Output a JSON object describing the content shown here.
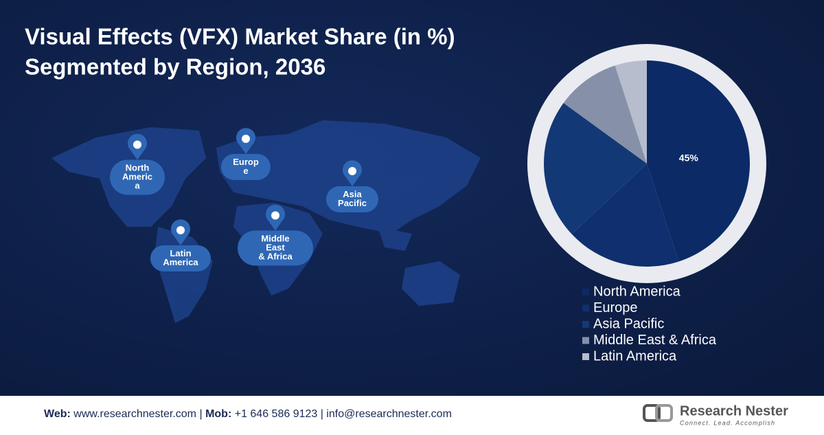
{
  "chart_data": {
    "type": "pie",
    "title": "Visual Effects (VFX) Market Share (in %)",
    "subtitle": "Segmented by Region, 2036",
    "categories": [
      "North America",
      "Europe",
      "Asia Pacific",
      "Middle East & Africa",
      "Latin America"
    ],
    "values": [
      45,
      18,
      22,
      10,
      5
    ],
    "value_labels": [
      "45%",
      null,
      null,
      null,
      null
    ],
    "colors": [
      "#0c2a66",
      "#0f2f6e",
      "#133876",
      "#8790a9",
      "#b7bdcc"
    ],
    "map_labels": [
      {
        "lines": [
          "North",
          "Americ",
          "a"
        ]
      },
      {
        "lines": [
          "Europ",
          "e"
        ]
      },
      {
        "lines": [
          "Asia",
          "Pacific"
        ]
      },
      {
        "lines": [
          "Latin",
          "America"
        ]
      },
      {
        "lines": [
          "Middle",
          "East",
          "& Africa"
        ]
      }
    ]
  },
  "footer": {
    "web_label": "Web:",
    "web": "www.researchnester.com",
    "sep1": "|",
    "mob_label": "Mob:",
    "mob": "+1 646 586 9123",
    "sep2": "|",
    "email": "info@researchnester.com",
    "logo": "Research Nester",
    "tagline": "Connect. Lead. Accomplish"
  }
}
